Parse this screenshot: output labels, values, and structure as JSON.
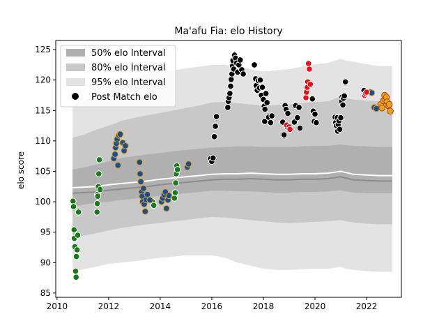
{
  "chart_data": {
    "type": "scatter",
    "title": "Ma'afu Fia: elo History",
    "xlabel": "",
    "ylabel": "elo score",
    "xlim": [
      2009.95,
      2023.35
    ],
    "ylim": [
      84.3,
      126.5
    ],
    "x_ticks": [
      2010,
      2012,
      2014,
      2016,
      2018,
      2020,
      2022
    ],
    "y_ticks": [
      85,
      90,
      95,
      100,
      105,
      110,
      115,
      120,
      125
    ],
    "legend": {
      "placement": "top-left",
      "entries": [
        {
          "label": "50% elo Interval",
          "kind": "band",
          "color": "#b0b0b0"
        },
        {
          "label": "80% elo Interval",
          "kind": "band",
          "color": "#c8c8c8"
        },
        {
          "label": "95% elo Interval",
          "kind": "band",
          "color": "#e3e3e3"
        },
        {
          "label": "Post Match elo",
          "kind": "marker",
          "color": "#000000"
        }
      ]
    },
    "bands": {
      "x": [
        2010.6,
        2011.0,
        2011.5,
        2012.0,
        2012.5,
        2013.0,
        2013.5,
        2014.0,
        2014.5,
        2015.0,
        2015.5,
        2016.0,
        2016.5,
        2017.0,
        2017.5,
        2018.0,
        2018.5,
        2019.0,
        2019.5,
        2020.0,
        2020.5,
        2021.0,
        2021.2,
        2021.5,
        2022.0,
        2022.5,
        2023.0
      ],
      "median": [
        102.3,
        102.4,
        102.5,
        102.8,
        103.0,
        103.2,
        103.4,
        103.7,
        103.9,
        104.1,
        104.3,
        104.5,
        104.6,
        104.6,
        104.7,
        104.6,
        104.5,
        104.5,
        104.6,
        104.6,
        104.7,
        105.0,
        104.8,
        104.5,
        104.4,
        104.3,
        104.3
      ],
      "p50": {
        "low": [
          99.2,
          99.5,
          99.8,
          100.0,
          100.3,
          100.5,
          100.8,
          101.0,
          101.2,
          101.4,
          101.6,
          101.8,
          101.8,
          101.7,
          101.7,
          101.6,
          101.5,
          101.5,
          101.6,
          101.6,
          101.7,
          101.9,
          101.7,
          101.5,
          101.4,
          101.4,
          101.4
        ],
        "high": [
          105.3,
          105.6,
          106.1,
          106.6,
          107.2,
          107.5,
          107.8,
          108.0,
          108.3,
          108.5,
          108.7,
          108.9,
          109.0,
          109.1,
          109.1,
          109.0,
          109.0,
          109.0,
          109.1,
          109.2,
          109.2,
          109.4,
          109.3,
          109.2,
          109.1,
          109.0,
          109.0
        ]
      },
      "p80": {
        "low": [
          94.0,
          94.4,
          94.8,
          95.3,
          95.7,
          96.0,
          96.3,
          96.5,
          96.8,
          97.0,
          97.3,
          97.5,
          97.4,
          97.2,
          97.0,
          96.8,
          96.6,
          96.5,
          96.6,
          96.7,
          96.8,
          97.0,
          96.8,
          96.6,
          96.4,
          96.3,
          96.3
        ],
        "high": [
          110.5,
          111.0,
          111.8,
          112.5,
          113.3,
          113.8,
          114.2,
          114.6,
          115.0,
          115.4,
          115.8,
          116.3,
          116.4,
          116.2,
          116.0,
          115.8,
          115.9,
          116.0,
          116.2,
          116.4,
          116.5,
          117.3,
          117.0,
          116.8,
          116.6,
          116.5,
          116.5
        ]
      },
      "p95": {
        "low": [
          88.5,
          88.9,
          89.3,
          89.8,
          90.0,
          90.2,
          90.5,
          90.8,
          91.0,
          91.2,
          91.2,
          91.2,
          90.8,
          90.0,
          89.5,
          89.0,
          88.8,
          88.8,
          88.9,
          89.0,
          89.0,
          89.3,
          89.0,
          88.8,
          88.6,
          88.5,
          88.5
        ],
        "high": [
          115.8,
          116.5,
          117.5,
          118.5,
          119.5,
          120.3,
          121.0,
          121.3,
          121.6,
          121.9,
          122.2,
          122.5,
          122.5,
          122.3,
          121.8,
          121.4,
          121.6,
          121.8,
          122.2,
          122.6,
          122.8,
          123.5,
          123.2,
          123.0,
          122.6,
          122.3,
          122.3
        ]
      }
    },
    "series": [
      {
        "color": "#1a7a1a",
        "edge": "#ffffff",
        "points": [
          [
            2010.62,
            100.1
          ],
          [
            2010.64,
            99.2
          ],
          [
            2010.66,
            95.4
          ],
          [
            2010.67,
            94.0
          ],
          [
            2010.69,
            92.6
          ],
          [
            2010.72,
            88.6
          ],
          [
            2010.74,
            87.6
          ],
          [
            2010.75,
            91.0
          ],
          [
            2010.78,
            92.1
          ],
          [
            2010.8,
            94.5
          ],
          [
            2010.83,
            98.3
          ],
          [
            2011.55,
            98.3
          ],
          [
            2011.56,
            99.7
          ],
          [
            2011.57,
            101.2
          ],
          [
            2011.58,
            100.9
          ],
          [
            2011.6,
            102.5
          ],
          [
            2011.62,
            104.6
          ],
          [
            2011.64,
            106.9
          ],
          [
            2011.67,
            102.0
          ],
          [
            2013.7,
            100.0
          ],
          [
            2013.75,
            99.4
          ],
          [
            2014.55,
            100.6
          ],
          [
            2014.58,
            101.5
          ],
          [
            2014.6,
            103.1
          ],
          [
            2014.62,
            104.6
          ],
          [
            2014.64,
            105.9
          ],
          [
            2014.67,
            105.3
          ]
        ]
      },
      {
        "color": "#1a4f8f",
        "edge": "#e8a020",
        "points": [
          [
            2012.2,
            107.1
          ],
          [
            2012.25,
            107.8
          ],
          [
            2012.27,
            108.9
          ],
          [
            2012.3,
            109.6
          ],
          [
            2012.33,
            110.3
          ],
          [
            2012.36,
            106.0
          ],
          [
            2012.4,
            110.9
          ],
          [
            2012.45,
            111.1
          ],
          [
            2012.55,
            109.7
          ],
          [
            2012.6,
            108.4
          ],
          [
            2012.65,
            109.2
          ],
          [
            2013.2,
            106.5
          ],
          [
            2013.22,
            104.6
          ],
          [
            2013.25,
            103.3
          ],
          [
            2013.28,
            101.6
          ],
          [
            2013.3,
            100.9
          ],
          [
            2013.32,
            100.0
          ],
          [
            2013.35,
            102.2
          ],
          [
            2013.38,
            99.6
          ],
          [
            2013.42,
            98.4
          ],
          [
            2013.45,
            100.3
          ],
          [
            2013.5,
            101.2
          ],
          [
            2013.6,
            100.3
          ],
          [
            2014.05,
            100.0
          ],
          [
            2014.1,
            100.6
          ],
          [
            2014.15,
            101.2
          ],
          [
            2014.2,
            101.6
          ],
          [
            2014.24,
            98.9
          ],
          [
            2014.3,
            100.3
          ],
          [
            2014.34,
            101.0
          ],
          [
            2015.05,
            105.7
          ],
          [
            2015.1,
            106.2
          ],
          [
            2022.3,
            115.5
          ],
          [
            2022.38,
            115.3
          ],
          [
            2022.15,
            118.0
          ],
          [
            2022.2,
            117.9
          ]
        ]
      },
      {
        "color": "#000000",
        "edge": "#ffffff",
        "points": [
          [
            2015.95,
            107.1
          ],
          [
            2016.0,
            106.6
          ],
          [
            2016.05,
            107.2
          ],
          [
            2016.1,
            110.7
          ],
          [
            2016.14,
            112.4
          ],
          [
            2016.18,
            114.0
          ],
          [
            2016.62,
            115.5
          ],
          [
            2016.64,
            116.5
          ],
          [
            2016.67,
            117.1
          ],
          [
            2016.7,
            117.8
          ],
          [
            2016.73,
            119.0
          ],
          [
            2016.75,
            120.1
          ],
          [
            2016.78,
            121.0
          ],
          [
            2016.8,
            122.3
          ],
          [
            2016.82,
            123.2
          ],
          [
            2016.85,
            121.8
          ],
          [
            2016.88,
            124.1
          ],
          [
            2016.92,
            123.6
          ],
          [
            2016.96,
            122.8
          ],
          [
            2017.0,
            121.3
          ],
          [
            2017.05,
            122.5
          ],
          [
            2017.1,
            123.3
          ],
          [
            2017.16,
            121.7
          ],
          [
            2017.22,
            121.0
          ],
          [
            2017.65,
            122.5
          ],
          [
            2017.7,
            120.2
          ],
          [
            2017.72,
            119.1
          ],
          [
            2017.76,
            118.3
          ],
          [
            2017.8,
            119.9
          ],
          [
            2017.85,
            118.7
          ],
          [
            2017.88,
            120.0
          ],
          [
            2017.92,
            117.5
          ],
          [
            2017.96,
            118.8
          ],
          [
            2018.0,
            116.8
          ],
          [
            2018.03,
            115.7
          ],
          [
            2018.06,
            115.2
          ],
          [
            2018.1,
            117.8
          ],
          [
            2018.14,
            116.3
          ],
          [
            2018.05,
            113.2
          ],
          [
            2018.2,
            113.9
          ],
          [
            2018.28,
            113.0
          ],
          [
            2018.33,
            114.1
          ],
          [
            2018.75,
            113.1
          ],
          [
            2018.8,
            111.0
          ],
          [
            2018.84,
            115.8
          ],
          [
            2018.88,
            115.2
          ],
          [
            2018.92,
            112.3
          ],
          [
            2018.95,
            114.5
          ],
          [
            2019.2,
            113.1
          ],
          [
            2019.25,
            115.8
          ],
          [
            2019.32,
            113.8
          ],
          [
            2019.38,
            115.5
          ],
          [
            2019.42,
            112.1
          ],
          [
            2019.9,
            116.9
          ],
          [
            2019.93,
            114.9
          ],
          [
            2019.97,
            113.2
          ],
          [
            2020.0,
            114.4
          ],
          [
            2020.05,
            113.0
          ],
          [
            2020.78,
            113.9
          ],
          [
            2020.8,
            113.0
          ],
          [
            2020.83,
            112.5
          ],
          [
            2020.86,
            113.8
          ],
          [
            2020.88,
            111.6
          ],
          [
            2020.9,
            112.7
          ],
          [
            2020.93,
            113.3
          ],
          [
            2020.96,
            111.9
          ],
          [
            2021.0,
            113.8
          ],
          [
            2021.03,
            116.5
          ],
          [
            2021.05,
            117.2
          ],
          [
            2021.08,
            115.9
          ],
          [
            2021.1,
            117.0
          ],
          [
            2021.14,
            117.4
          ],
          [
            2021.18,
            119.7
          ],
          [
            2021.9,
            118.3
          ]
        ]
      },
      {
        "color": "#e8101a",
        "edge": "#ffffff",
        "points": [
          [
            2018.9,
            112.6
          ],
          [
            2019.0,
            112.3
          ],
          [
            2019.03,
            111.9
          ],
          [
            2019.65,
            117.1
          ],
          [
            2019.67,
            118.0
          ],
          [
            2019.7,
            118.8
          ],
          [
            2019.72,
            119.7
          ],
          [
            2019.75,
            122.7
          ],
          [
            2019.78,
            121.8
          ],
          [
            2019.82,
            119.3
          ],
          [
            2021.92,
            117.5
          ],
          [
            2021.96,
            117.8
          ],
          [
            2022.0,
            118.0
          ]
        ]
      },
      {
        "color": "#e8a020",
        "edge": "#b05010",
        "points": [
          [
            2022.55,
            116.0
          ],
          [
            2022.6,
            115.4
          ],
          [
            2022.65,
            116.6
          ],
          [
            2022.7,
            117.5
          ],
          [
            2022.74,
            116.8
          ],
          [
            2022.77,
            117.2
          ],
          [
            2022.8,
            116.4
          ],
          [
            2022.84,
            115.8
          ],
          [
            2022.88,
            116.0
          ],
          [
            2022.92,
            114.9
          ]
        ]
      }
    ]
  }
}
